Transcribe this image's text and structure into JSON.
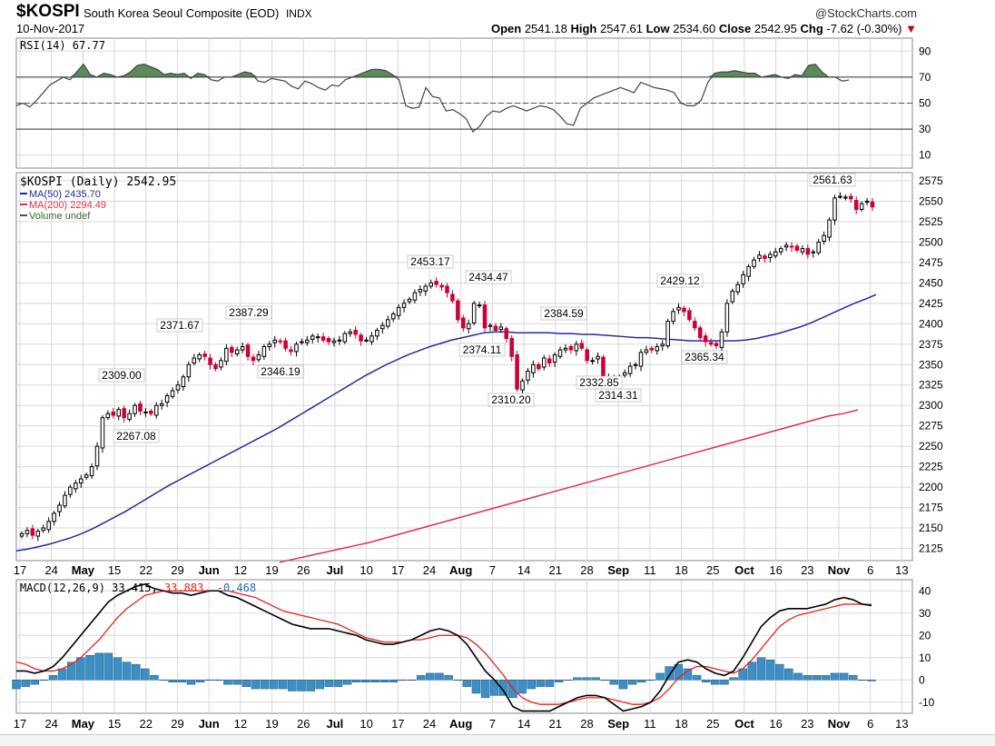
{
  "header": {
    "symbol": "$KOSPI",
    "description": "South Korea Seoul Composite (EOD)",
    "exchange": "INDX",
    "date": "10-Nov-2017",
    "source": "@StockCharts.com",
    "open_label": "Open",
    "open": "2541.18",
    "high_label": "High",
    "high": "2547.61",
    "low_label": "Low",
    "low": "2534.60",
    "close_label": "Close",
    "close": "2542.95",
    "chg_label": "Chg",
    "chg": "-7.62 (-0.30%)",
    "chg_arrow": "▼"
  },
  "colors": {
    "up": "#000000",
    "down": "#cc0033",
    "ma50": "#1f2d9e",
    "ma200": "#e0304a",
    "rsi_fill": "#5c8a5c",
    "macd_line": "#000000",
    "signal_line": "#e8241c",
    "histogram": "#3b8fc7",
    "grid": "#d8d8d8"
  },
  "chart_data": [
    {
      "type": "line",
      "panel": "rsi",
      "label": "RSI(14) 67.77",
      "ylim": [
        0,
        100
      ],
      "ticks": [
        90,
        70,
        50,
        30,
        10
      ],
      "reference_lines": [
        70,
        50,
        30
      ],
      "values": [
        48,
        50,
        47,
        52,
        58,
        64,
        67,
        70,
        68,
        74,
        80,
        72,
        70,
        73,
        72,
        70,
        71,
        74,
        79,
        80,
        78,
        76,
        72,
        73,
        72,
        73,
        69,
        73,
        72,
        68,
        67,
        70,
        70,
        72,
        74,
        73,
        67,
        66,
        69,
        68,
        67,
        63,
        61,
        67,
        65,
        62,
        60,
        64,
        63,
        68,
        70,
        72,
        74,
        76,
        76,
        75,
        72,
        68,
        48,
        46,
        47,
        62,
        55,
        54,
        44,
        45,
        42,
        38,
        28,
        32,
        40,
        44,
        43,
        46,
        48,
        46,
        44,
        46,
        48,
        47,
        45,
        40,
        34,
        33,
        46,
        50,
        54,
        56,
        58,
        60,
        62,
        60,
        58,
        66,
        64,
        62,
        61,
        60,
        58,
        50,
        48,
        48,
        52,
        66,
        73,
        74,
        74,
        75,
        74,
        73,
        73,
        70,
        71,
        72,
        70,
        69,
        72,
        71,
        79,
        80,
        74,
        70,
        70,
        67,
        67.77
      ]
    },
    {
      "type": "candlestick",
      "panel": "price",
      "label": "$KOSPI (Daily) 2542.95",
      "ylim": [
        2110,
        2585
      ],
      "ticks": [
        2575,
        2550,
        2525,
        2500,
        2475,
        2450,
        2425,
        2400,
        2375,
        2350,
        2325,
        2300,
        2275,
        2250,
        2225,
        2200,
        2175,
        2150,
        2125
      ],
      "annotations": [
        {
          "value": "2561.63",
          "text": "2561.63"
        },
        {
          "value": "2453.17",
          "text": "2453.17"
        },
        {
          "value": "2434.47",
          "text": "2434.47"
        },
        {
          "value": "2429.12",
          "text": "2429.12"
        },
        {
          "value": "2387.29",
          "text": "2387.29"
        },
        {
          "value": "2384.59",
          "text": "2384.59"
        },
        {
          "value": "2374.11",
          "text": "2374.11"
        },
        {
          "value": "2371.67",
          "text": "2371.67"
        },
        {
          "value": "2365.34",
          "text": "2365.34"
        },
        {
          "value": "2346.19",
          "text": "2346.19"
        },
        {
          "value": "2332.85",
          "text": "2332.85"
        },
        {
          "value": "2314.31",
          "text": "2314.31"
        },
        {
          "value": "2310.20",
          "text": "2310.20"
        },
        {
          "value": "2309.00",
          "text": "2309.00"
        },
        {
          "value": "2267.08",
          "text": "2267.08"
        }
      ],
      "legend": [
        {
          "name": "MA(50) 2435.70",
          "color": "#1f2d9e"
        },
        {
          "name": "MA(200) 2294.49",
          "color": "#e0304a"
        },
        {
          "name": "Volume undef",
          "color": "#2e6b2e"
        }
      ],
      "close": [
        2143,
        2147,
        2141,
        2146,
        2150,
        2158,
        2168,
        2178,
        2190,
        2200,
        2205,
        2210,
        2215,
        2225,
        2250,
        2285,
        2290,
        2288,
        2295,
        2285,
        2290,
        2300,
        2293,
        2292,
        2290,
        2300,
        2302,
        2312,
        2318,
        2325,
        2335,
        2350,
        2358,
        2362,
        2360,
        2350,
        2345,
        2355,
        2370,
        2365,
        2368,
        2372,
        2360,
        2355,
        2362,
        2372,
        2375,
        2380,
        2378,
        2370,
        2366,
        2375,
        2378,
        2380,
        2385,
        2384,
        2380,
        2378,
        2379,
        2380,
        2388,
        2390,
        2387,
        2379,
        2380,
        2385,
        2392,
        2398,
        2405,
        2412,
        2420,
        2425,
        2430,
        2438,
        2442,
        2446,
        2450,
        2448,
        2445,
        2438,
        2428,
        2405,
        2395,
        2400,
        2425,
        2423,
        2395,
        2398,
        2392,
        2396,
        2382,
        2360,
        2320,
        2330,
        2342,
        2350,
        2345,
        2358,
        2352,
        2362,
        2368,
        2370,
        2368,
        2375,
        2370,
        2355,
        2355,
        2360,
        2332,
        2335,
        2325,
        2335,
        2340,
        2348,
        2350,
        2365,
        2368,
        2368,
        2372,
        2375,
        2403,
        2415,
        2420,
        2415,
        2405,
        2395,
        2383,
        2378,
        2375,
        2373,
        2390,
        2425,
        2440,
        2448,
        2460,
        2470,
        2478,
        2484,
        2480,
        2485,
        2488,
        2492,
        2496,
        2494,
        2490,
        2492,
        2485,
        2488,
        2500,
        2508,
        2527,
        2554,
        2556,
        2555,
        2553,
        2540,
        2547,
        2550,
        2542.95
      ],
      "ma50": [
        2122,
        2124,
        2127,
        2130,
        2134,
        2138,
        2143,
        2149,
        2156,
        2163,
        2170,
        2178,
        2186,
        2194,
        2202,
        2209,
        2216,
        2223,
        2230,
        2237,
        2244,
        2251,
        2258,
        2265,
        2272,
        2280,
        2288,
        2296,
        2304,
        2312,
        2320,
        2328,
        2336,
        2343,
        2350,
        2356,
        2362,
        2367,
        2372,
        2376,
        2380,
        2383,
        2386,
        2389,
        2390,
        2390,
        2389,
        2389,
        2389,
        2389,
        2388,
        2388,
        2387,
        2387,
        2386,
        2385,
        2384,
        2383,
        2383,
        2382,
        2381,
        2380,
        2379,
        2379,
        2379,
        2379,
        2379,
        2380,
        2382,
        2385,
        2388,
        2392,
        2396,
        2401,
        2407,
        2413,
        2419,
        2425,
        2430,
        2435.7
      ],
      "ma200": [
        2108,
        2112,
        2116,
        2120,
        2124,
        2128,
        2132,
        2137,
        2142,
        2147,
        2152,
        2157,
        2162,
        2167,
        2172,
        2177,
        2182,
        2187,
        2192,
        2197,
        2202,
        2207,
        2212,
        2217,
        2222,
        2227,
        2232,
        2237,
        2242,
        2247,
        2252,
        2257,
        2262,
        2267,
        2272,
        2277,
        2282,
        2287,
        2290,
        2294.49
      ]
    },
    {
      "type": "line",
      "panel": "macd",
      "label": "MACD(12,26,9) 33.415, 33.883, -0.468",
      "label_parts": [
        "MACD(12,26,9) 33.415,",
        " 33.883,",
        " -0.468"
      ],
      "ylim": [
        -15,
        45
      ],
      "ticks": [
        40,
        30,
        20,
        10,
        0,
        -10
      ],
      "macd": [
        4,
        4,
        3,
        4,
        6,
        10,
        15,
        20,
        25,
        30,
        35,
        38,
        40,
        42,
        43,
        41,
        40,
        39,
        39,
        38,
        39,
        40,
        40,
        38,
        37,
        35,
        33,
        31,
        29,
        27,
        25,
        24,
        23,
        23,
        23,
        22,
        21,
        20,
        18,
        17,
        16,
        16,
        17,
        18,
        20,
        22,
        23,
        22,
        20,
        16,
        10,
        4,
        0,
        -5,
        -12,
        -14,
        -14,
        -14,
        -14,
        -12,
        -10,
        -8,
        -7,
        -7,
        -8,
        -11,
        -14,
        -13,
        -12,
        -10,
        -5,
        2,
        8,
        9,
        8,
        5,
        3,
        2,
        4,
        10,
        17,
        24,
        28,
        31,
        32,
        32,
        32,
        33,
        34,
        36,
        37,
        36,
        34,
        33.415
      ],
      "signal": [
        8,
        7,
        5,
        4,
        4,
        5,
        7,
        10,
        14,
        18,
        23,
        28,
        32,
        35,
        38,
        39,
        40,
        40,
        40,
        40,
        40,
        40,
        40,
        40,
        39,
        38,
        37,
        35,
        33,
        31,
        30,
        29,
        28,
        27,
        26,
        25,
        23,
        21,
        19,
        18,
        17,
        17,
        17,
        18,
        18,
        19,
        20,
        20,
        20,
        19,
        16,
        12,
        7,
        2,
        -4,
        -8,
        -10,
        -11,
        -11,
        -11,
        -10,
        -9,
        -8,
        -8,
        -8,
        -9,
        -10,
        -11,
        -11,
        -10,
        -8,
        -4,
        1,
        4,
        6,
        6,
        5,
        4,
        3,
        5,
        9,
        14,
        19,
        24,
        27,
        29,
        30,
        31,
        32,
        33,
        34,
        34,
        34,
        33.883
      ],
      "histogram": [
        -4,
        -3,
        -2,
        0,
        2,
        5,
        8,
        10,
        11,
        12,
        12,
        10,
        8,
        7,
        5,
        2,
        0,
        -1,
        -1,
        -2,
        -1,
        0,
        0,
        -2,
        -2,
        -3,
        -4,
        -4,
        -4,
        -4,
        -5,
        -5,
        -5,
        -4,
        -3,
        -3,
        -2,
        -1,
        -1,
        -1,
        -1,
        -1,
        0,
        0,
        2,
        3,
        3,
        2,
        0,
        -3,
        -6,
        -8,
        -7,
        -7,
        -8,
        -6,
        -4,
        -3,
        -3,
        -1,
        0,
        1,
        1,
        1,
        0,
        -2,
        -4,
        -2,
        -1,
        0,
        3,
        6,
        7,
        5,
        2,
        -1,
        -2,
        -2,
        1,
        5,
        8,
        10,
        9,
        7,
        5,
        3,
        2,
        2,
        2,
        3,
        3,
        2,
        0,
        -0.468
      ]
    }
  ],
  "x_axis": {
    "labels": [
      {
        "text": "17",
        "bold": false
      },
      {
        "text": "24",
        "bold": false
      },
      {
        "text": "May",
        "bold": true
      },
      {
        "text": "15",
        "bold": false
      },
      {
        "text": "22",
        "bold": false
      },
      {
        "text": "29",
        "bold": false
      },
      {
        "text": "Jun",
        "bold": true
      },
      {
        "text": "12",
        "bold": false
      },
      {
        "text": "19",
        "bold": false
      },
      {
        "text": "26",
        "bold": false
      },
      {
        "text": "Jul",
        "bold": true
      },
      {
        "text": "10",
        "bold": false
      },
      {
        "text": "17",
        "bold": false
      },
      {
        "text": "24",
        "bold": false
      },
      {
        "text": "Aug",
        "bold": true
      },
      {
        "text": "7",
        "bold": false
      },
      {
        "text": "14",
        "bold": false
      },
      {
        "text": "21",
        "bold": false
      },
      {
        "text": "28",
        "bold": false
      },
      {
        "text": "Sep",
        "bold": true
      },
      {
        "text": "11",
        "bold": false
      },
      {
        "text": "18",
        "bold": false
      },
      {
        "text": "25",
        "bold": false
      },
      {
        "text": "Oct",
        "bold": true
      },
      {
        "text": "16",
        "bold": false
      },
      {
        "text": "23",
        "bold": false
      },
      {
        "text": "Nov",
        "bold": true
      },
      {
        "text": "6",
        "bold": false
      },
      {
        "text": "13",
        "bold": false
      }
    ]
  }
}
